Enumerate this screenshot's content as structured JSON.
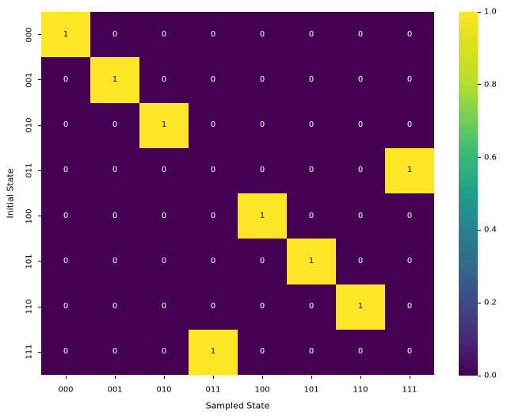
{
  "figure": {
    "background": "#ffffff"
  },
  "chart_data": {
    "type": "heatmap",
    "title": "",
    "xlabel": "Sampled State",
    "ylabel": "Initial State",
    "x_categories": [
      "000",
      "001",
      "010",
      "011",
      "100",
      "101",
      "110",
      "111"
    ],
    "y_categories": [
      "000",
      "001",
      "010",
      "011",
      "100",
      "101",
      "110",
      "111"
    ],
    "matrix": [
      [
        1,
        0,
        0,
        0,
        0,
        0,
        0,
        0
      ],
      [
        0,
        1,
        0,
        0,
        0,
        0,
        0,
        0
      ],
      [
        0,
        0,
        1,
        0,
        0,
        0,
        0,
        0
      ],
      [
        0,
        0,
        0,
        0,
        0,
        0,
        0,
        1
      ],
      [
        0,
        0,
        0,
        0,
        1,
        0,
        0,
        0
      ],
      [
        0,
        0,
        0,
        0,
        0,
        1,
        0,
        0
      ],
      [
        0,
        0,
        0,
        0,
        0,
        0,
        1,
        0
      ],
      [
        0,
        0,
        0,
        1,
        0,
        0,
        0,
        0
      ]
    ],
    "annotated": true,
    "vmin": 0.0,
    "vmax": 1.0,
    "grid": false,
    "legend": null,
    "colormap": {
      "name": "viridis",
      "low_color": "#440154",
      "high_color": "#fde725",
      "stops": [
        "#440154",
        "#482878",
        "#3e4989",
        "#31688e",
        "#26828e",
        "#1f9e89",
        "#35b779",
        "#6ece58",
        "#b5de2b",
        "#d8e219",
        "#fde725"
      ]
    },
    "cell_text_color_low": "#ffffff",
    "cell_text_color_high": "#000000",
    "colorbar": {
      "position": "right",
      "min": 0.0,
      "max": 1.0,
      "ticks": [
        "1.0",
        "0.8",
        "0.6",
        "0.4",
        "0.2",
        "0.0"
      ]
    }
  }
}
